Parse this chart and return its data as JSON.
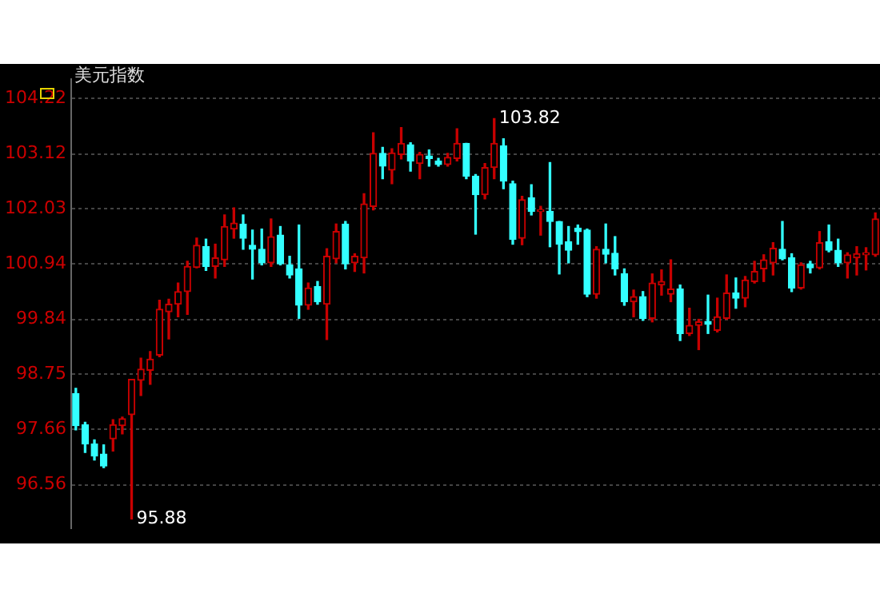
{
  "chart_data": {
    "type": "candlestick",
    "title": "美元指数",
    "categories": [
      null,
      null,
      null,
      null,
      null,
      null,
      null,
      null,
      null,
      null,
      null,
      null,
      null,
      null,
      null,
      null,
      null,
      null,
      null,
      null,
      null,
      null,
      null,
      null,
      null,
      null,
      null,
      null,
      null,
      null,
      null,
      null,
      null,
      null,
      null,
      null,
      null,
      null,
      null,
      null,
      null,
      null,
      null,
      null,
      null,
      null,
      null,
      null,
      null,
      null,
      null,
      null,
      null,
      null,
      null,
      null,
      null,
      null,
      null,
      null,
      null,
      null,
      null,
      null,
      null,
      null,
      null,
      null,
      null,
      null,
      null,
      null,
      null,
      null,
      null,
      null,
      null,
      null,
      null,
      null,
      null,
      null,
      null,
      null,
      null,
      null,
      null
    ],
    "ohlc": [
      [
        98.37,
        98.47,
        97.65,
        97.73
      ],
      [
        97.75,
        97.8,
        97.2,
        97.37
      ],
      [
        97.37,
        97.45,
        97.05,
        97.13
      ],
      [
        97.17,
        97.35,
        96.9,
        96.93
      ],
      [
        97.47,
        97.85,
        97.23,
        97.75
      ],
      [
        97.73,
        97.9,
        97.57,
        97.87
      ],
      [
        97.95,
        98.65,
        95.88,
        98.65
      ],
      [
        98.63,
        99.07,
        98.33,
        98.85
      ],
      [
        98.83,
        99.2,
        98.55,
        99.05
      ],
      [
        99.13,
        100.22,
        99.1,
        100.04
      ],
      [
        99.99,
        100.24,
        99.45,
        100.14
      ],
      [
        100.14,
        100.56,
        99.89,
        100.39
      ],
      [
        100.39,
        100.99,
        99.94,
        100.89
      ],
      [
        100.87,
        101.45,
        100.86,
        101.31
      ],
      [
        101.28,
        101.43,
        100.81,
        100.89
      ],
      [
        100.89,
        101.33,
        100.66,
        101.06
      ],
      [
        101.02,
        101.91,
        100.89,
        101.68
      ],
      [
        101.63,
        102.05,
        101.45,
        101.75
      ],
      [
        101.73,
        101.91,
        101.23,
        101.45
      ],
      [
        101.31,
        101.61,
        100.64,
        101.23
      ],
      [
        101.23,
        101.63,
        100.92,
        100.96
      ],
      [
        100.96,
        101.83,
        100.89,
        101.48
      ],
      [
        101.51,
        101.68,
        100.92,
        100.94
      ],
      [
        100.92,
        101.09,
        100.66,
        100.72
      ],
      [
        100.84,
        101.71,
        99.86,
        100.12
      ],
      [
        100.12,
        100.56,
        100.04,
        100.46
      ],
      [
        100.49,
        100.59,
        100.14,
        100.19
      ],
      [
        100.14,
        101.24,
        99.44,
        101.09
      ],
      [
        101.04,
        101.73,
        100.96,
        101.58
      ],
      [
        101.73,
        101.78,
        100.84,
        100.94
      ],
      [
        100.96,
        101.14,
        100.79,
        101.09
      ],
      [
        101.06,
        102.33,
        100.76,
        102.13
      ],
      [
        102.08,
        103.54,
        102.01,
        103.13
      ],
      [
        103.13,
        103.25,
        102.63,
        102.88
      ],
      [
        102.8,
        103.22,
        102.53,
        103.14
      ],
      [
        103.11,
        103.64,
        103.02,
        103.33
      ],
      [
        103.3,
        103.34,
        102.78,
        102.98
      ],
      [
        102.93,
        103.15,
        102.63,
        103.11
      ],
      [
        103.08,
        103.2,
        102.88,
        103.03
      ],
      [
        102.98,
        103.03,
        102.88,
        102.91
      ],
      [
        102.91,
        103.13,
        102.88,
        103.05
      ],
      [
        103.03,
        103.62,
        102.98,
        103.33
      ],
      [
        103.33,
        103.33,
        102.63,
        102.68
      ],
      [
        102.68,
        102.71,
        101.53,
        102.31
      ],
      [
        102.31,
        102.93,
        102.23,
        102.85
      ],
      [
        102.85,
        103.82,
        102.63,
        103.33
      ],
      [
        103.28,
        103.42,
        102.43,
        102.58
      ],
      [
        102.53,
        102.58,
        101.33,
        101.43
      ],
      [
        101.45,
        102.28,
        101.32,
        102.21
      ],
      [
        102.25,
        102.51,
        101.91,
        101.98
      ],
      [
        101.98,
        102.08,
        101.51,
        102.01
      ],
      [
        101.98,
        102.95,
        101.28,
        101.78
      ],
      [
        101.78,
        101.78,
        100.74,
        101.33
      ],
      [
        101.38,
        101.68,
        100.96,
        101.21
      ],
      [
        101.65,
        101.71,
        101.33,
        101.58
      ],
      [
        101.61,
        101.63,
        100.29,
        100.34
      ],
      [
        100.34,
        101.28,
        100.26,
        101.23
      ],
      [
        101.23,
        101.73,
        100.96,
        101.13
      ],
      [
        101.15,
        101.48,
        100.72,
        100.84
      ],
      [
        100.74,
        100.84,
        100.12,
        100.19
      ],
      [
        100.19,
        100.42,
        99.89,
        100.29
      ],
      [
        100.29,
        100.39,
        99.82,
        99.86
      ],
      [
        99.86,
        100.74,
        99.79,
        100.56
      ],
      [
        100.52,
        100.82,
        100.32,
        100.59
      ],
      [
        100.34,
        101.02,
        100.19,
        100.44
      ],
      [
        100.44,
        100.52,
        99.42,
        99.56
      ],
      [
        99.56,
        100.06,
        99.52,
        99.72
      ],
      [
        99.72,
        99.84,
        99.24,
        99.79
      ],
      [
        99.8,
        100.32,
        99.56,
        99.74
      ],
      [
        99.62,
        100.26,
        99.59,
        99.89
      ],
      [
        99.86,
        100.72,
        99.84,
        100.36
      ],
      [
        100.36,
        100.66,
        100.06,
        100.26
      ],
      [
        100.26,
        100.69,
        100.09,
        100.62
      ],
      [
        100.59,
        100.99,
        100.56,
        100.79
      ],
      [
        100.84,
        101.12,
        100.59,
        101.02
      ],
      [
        100.96,
        101.36,
        100.72,
        101.25
      ],
      [
        101.23,
        101.78,
        101.02,
        101.04
      ],
      [
        101.06,
        101.14,
        100.39,
        100.46
      ],
      [
        100.46,
        100.96,
        100.44,
        100.92
      ],
      [
        100.94,
        100.99,
        100.76,
        100.86
      ],
      [
        100.86,
        101.58,
        100.84,
        101.36
      ],
      [
        101.38,
        101.71,
        101.18,
        101.21
      ],
      [
        101.21,
        101.43,
        100.89,
        100.96
      ],
      [
        100.96,
        101.16,
        100.66,
        101.12
      ],
      [
        101.06,
        101.28,
        100.72,
        101.14
      ],
      [
        101.12,
        101.26,
        100.82,
        101.16
      ],
      [
        101.12,
        101.95,
        101.09,
        101.83
      ]
    ],
    "colors": [
      "#33ffff",
      "#33ffff",
      "#33ffff",
      "#33ffff",
      "#c80000",
      "#c80000",
      "#c80000",
      "#c80000",
      "#c80000",
      "#c80000",
      "#c80000",
      "#c80000",
      "#c80000",
      "#c80000",
      "#33ffff",
      "#c80000",
      "#c80000",
      "#c80000",
      "#33ffff",
      "#33ffff",
      "#33ffff",
      "#c80000",
      "#33ffff",
      "#33ffff",
      "#33ffff",
      "#c80000",
      "#33ffff",
      "#c80000",
      "#c80000",
      "#33ffff",
      "#c80000",
      "#c80000",
      "#c80000",
      "#33ffff",
      "#c80000",
      "#c80000",
      "#33ffff",
      "#c80000",
      "#33ffff",
      "#33ffff",
      "#c80000",
      "#c80000",
      "#33ffff",
      "#33ffff",
      "#c80000",
      "#c80000",
      "#33ffff",
      "#33ffff",
      "#c80000",
      "#33ffff",
      "#c80000",
      "#33ffff",
      "#33ffff",
      "#33ffff",
      "#33ffff",
      "#33ffff",
      "#c80000",
      "#33ffff",
      "#33ffff",
      "#33ffff",
      "#c80000",
      "#33ffff",
      "#c80000",
      "#c80000",
      "#c80000",
      "#33ffff",
      "#c80000",
      "#c80000",
      "#33ffff",
      "#c80000",
      "#c80000",
      "#33ffff",
      "#c80000",
      "#c80000",
      "#c80000",
      "#c80000",
      "#33ffff",
      "#33ffff",
      "#c80000",
      "#33ffff",
      "#c80000",
      "#33ffff",
      "#33ffff",
      "#c80000",
      "#c80000",
      "#c80000",
      "#c80000"
    ],
    "ylim": [
      95.7,
      104.6
    ],
    "yticks": [
      96.56,
      97.66,
      98.75,
      99.84,
      100.94,
      102.03,
      103.12,
      104.22
    ],
    "grid": "y",
    "legend": false,
    "tick_labels": "y",
    "annotations": [
      "103.82",
      "95.88"
    ]
  }
}
